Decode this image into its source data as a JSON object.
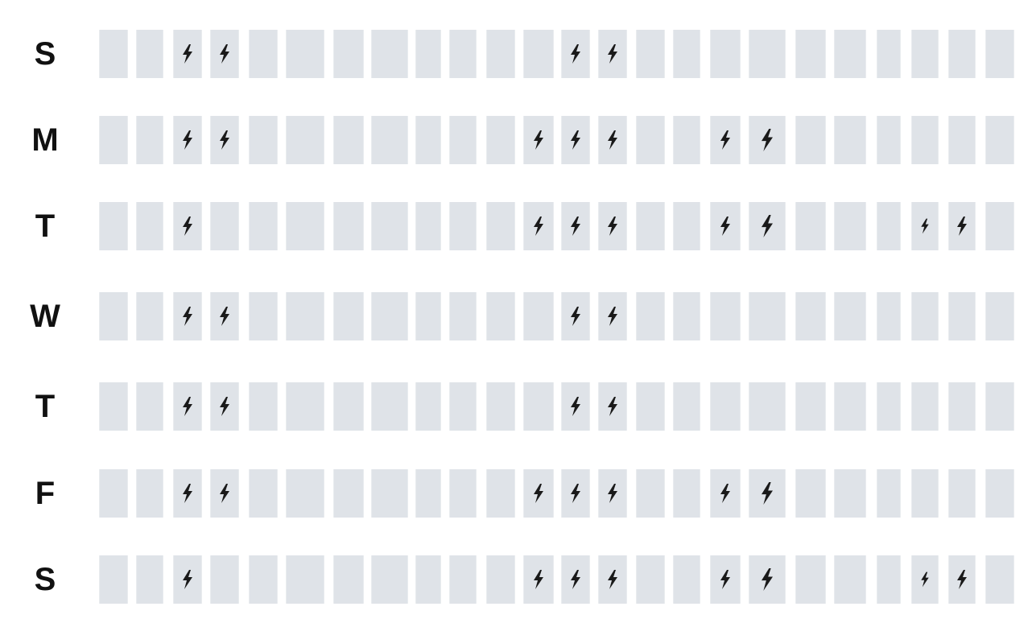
{
  "schedule": {
    "slot_count": 24,
    "legend_icon": "lightning-bolt-icon",
    "colors": {
      "slot": "#dfe3e8",
      "bolt": "#1a1a1a",
      "label": "#111111"
    },
    "days": [
      {
        "label": "S",
        "bolts": [
          {
            "slot": 2
          },
          {
            "slot": 3
          },
          {
            "slot": 12
          },
          {
            "slot": 13
          }
        ]
      },
      {
        "label": "M",
        "bolts": [
          {
            "slot": 2
          },
          {
            "slot": 3
          },
          {
            "slot": 11
          },
          {
            "slot": 12
          },
          {
            "slot": 13
          },
          {
            "slot": 16
          },
          {
            "slot": 17,
            "size": "large"
          }
        ]
      },
      {
        "label": "T",
        "bolts": [
          {
            "slot": 2
          },
          {
            "slot": 11
          },
          {
            "slot": 12
          },
          {
            "slot": 13
          },
          {
            "slot": 16
          },
          {
            "slot": 17,
            "size": "large"
          },
          {
            "slot": 21,
            "size": "small"
          },
          {
            "slot": 22
          }
        ]
      },
      {
        "label": "W",
        "bolts": [
          {
            "slot": 2
          },
          {
            "slot": 3
          },
          {
            "slot": 12
          },
          {
            "slot": 13
          }
        ]
      },
      {
        "label": "T",
        "bolts": [
          {
            "slot": 2
          },
          {
            "slot": 3
          },
          {
            "slot": 12
          },
          {
            "slot": 13
          }
        ]
      },
      {
        "label": "F",
        "bolts": [
          {
            "slot": 2
          },
          {
            "slot": 3
          },
          {
            "slot": 11
          },
          {
            "slot": 12
          },
          {
            "slot": 13
          },
          {
            "slot": 16
          },
          {
            "slot": 17,
            "size": "large"
          }
        ]
      },
      {
        "label": "S",
        "bolts": [
          {
            "slot": 2
          },
          {
            "slot": 11
          },
          {
            "slot": 12
          },
          {
            "slot": 13
          },
          {
            "slot": 16
          },
          {
            "slot": 17,
            "size": "large"
          },
          {
            "slot": 21,
            "size": "small"
          },
          {
            "slot": 22
          }
        ]
      }
    ]
  }
}
